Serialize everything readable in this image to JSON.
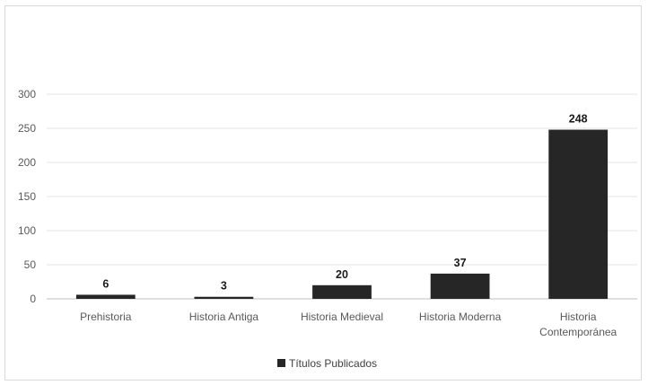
{
  "chart_data": {
    "type": "bar",
    "categories": [
      "Prehistoria",
      "Historia Antiga",
      "Historia Medieval",
      "Historia Moderna",
      "Historia Contemporánea"
    ],
    "category_lines": [
      [
        "Prehistoria"
      ],
      [
        "Historia Antiga"
      ],
      [
        "Historia Medieval"
      ],
      [
        "Historia Moderna"
      ],
      [
        "Historia",
        "Contemporánea"
      ]
    ],
    "series": [
      {
        "name": "Títulos Publicados",
        "values": [
          6,
          3,
          20,
          37,
          248
        ]
      }
    ],
    "data_labels": [
      "6",
      "3",
      "20",
      "37",
      "248"
    ],
    "yticks": [
      0,
      50,
      100,
      150,
      200,
      250,
      300
    ],
    "ylim": [
      0,
      300
    ],
    "grid": true,
    "legend_position": "bottom",
    "bar_color": "#262626"
  }
}
